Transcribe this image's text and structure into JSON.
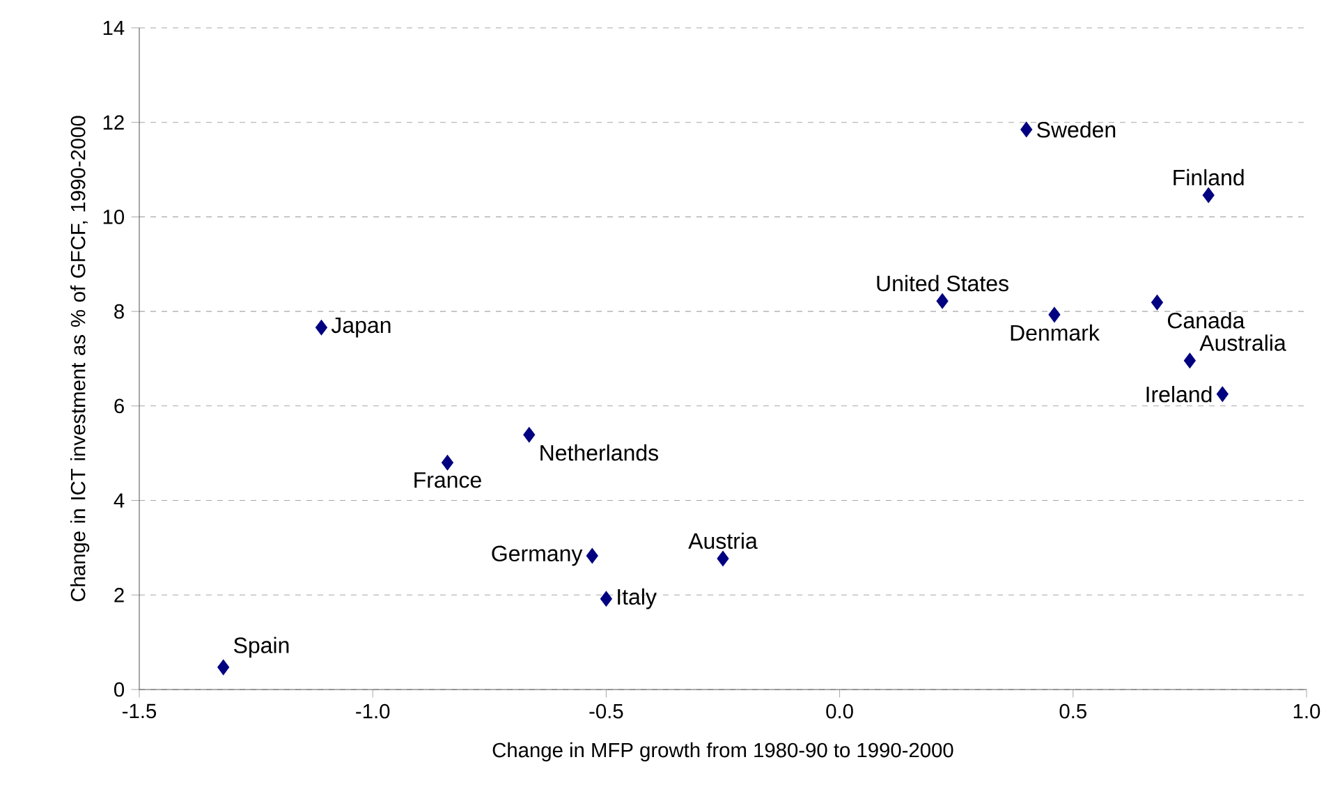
{
  "chart_data": {
    "type": "scatter",
    "xlabel": "Change in MFP growth from 1980-90 to 1990-2000",
    "ylabel": "Change in ICT investment as % of GFCF, 1990-2000",
    "x": [
      -1.32,
      -1.11,
      -0.84,
      -0.665,
      -0.53,
      -0.5,
      -0.25,
      0.22,
      0.4,
      0.46,
      0.68,
      0.75,
      0.82,
      0.79
    ],
    "series": [
      {
        "color": "#000080",
        "values": [
          0.47,
          7.66,
          4.8,
          5.39,
          2.83,
          1.92,
          2.77,
          8.22,
          11.85,
          7.93,
          8.19,
          6.96,
          6.25,
          10.46
        ]
      }
    ],
    "annotations": [
      {
        "text": "Spain",
        "x": -1.32,
        "y": 0.47
      },
      {
        "text": "Japan",
        "x": -1.11,
        "y": 7.66
      },
      {
        "text": "France",
        "x": -0.84,
        "y": 4.8
      },
      {
        "text": "Netherlands",
        "x": -0.665,
        "y": 5.39
      },
      {
        "text": "Germany",
        "x": -0.53,
        "y": 2.83
      },
      {
        "text": "Italy",
        "x": -0.5,
        "y": 1.92
      },
      {
        "text": "Austria",
        "x": -0.25,
        "y": 2.77
      },
      {
        "text": "United States",
        "x": 0.22,
        "y": 8.22
      },
      {
        "text": "Sweden",
        "x": 0.4,
        "y": 11.85
      },
      {
        "text": "Denmark",
        "x": 0.46,
        "y": 7.93
      },
      {
        "text": "Canada",
        "x": 0.68,
        "y": 8.19
      },
      {
        "text": "Australia",
        "x": 0.75,
        "y": 6.96
      },
      {
        "text": "Ireland",
        "x": 0.82,
        "y": 6.25
      },
      {
        "text": "Finland",
        "x": 0.79,
        "y": 10.46
      }
    ],
    "xlim": [
      -1.5,
      1.0
    ],
    "ylim": [
      0,
      14
    ],
    "xticks": [
      {
        "value": -1.5,
        "label": "-1.5"
      },
      {
        "value": -1.0,
        "label": "-1.0"
      },
      {
        "value": -0.5,
        "label": "-0.5"
      },
      {
        "value": 0.0,
        "label": "0.0"
      },
      {
        "value": 0.5,
        "label": "0.5"
      },
      {
        "value": 1.0,
        "label": "1.0"
      }
    ],
    "yticks": [
      0,
      2,
      4,
      6,
      8,
      10,
      12,
      14
    ],
    "grid": "y",
    "marker": "diamond"
  }
}
